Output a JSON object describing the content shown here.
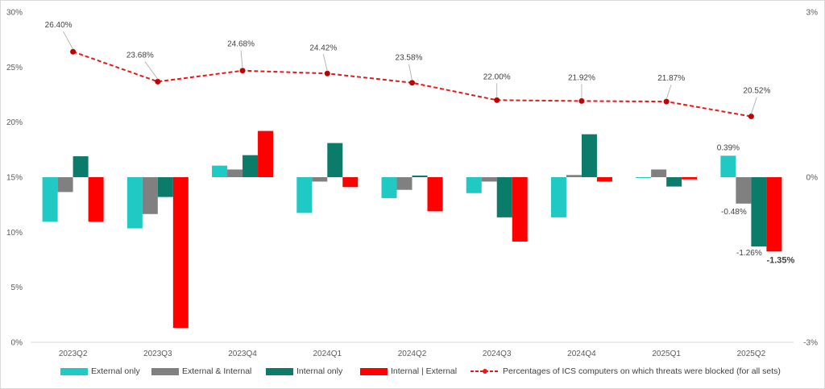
{
  "chart_data": {
    "type": "bar",
    "categories": [
      "2023Q2",
      "2023Q3",
      "2023Q4",
      "2024Q1",
      "2024Q2",
      "2024Q3",
      "2024Q4",
      "2025Q1",
      "2025Q2"
    ],
    "left_axis": {
      "ylim": [
        0,
        30
      ],
      "ticks": [
        0,
        5,
        10,
        15,
        20,
        25,
        30
      ],
      "tick_labels": [
        "0%",
        "5%",
        "10%",
        "15%",
        "20%",
        "25%",
        "30%"
      ]
    },
    "right_axis": {
      "ylim": [
        -3,
        3
      ],
      "ticks": [
        -3,
        0,
        3
      ],
      "tick_labels": [
        "-3%",
        "0%",
        "3%"
      ]
    },
    "bar_series": [
      {
        "name": "External only",
        "color": "#20C9C3",
        "axis": "right",
        "values": [
          -0.81,
          -0.93,
          0.21,
          -0.65,
          -0.38,
          -0.29,
          -0.73,
          -0.01,
          0.39
        ],
        "shown_labels": [
          null,
          null,
          null,
          null,
          null,
          null,
          null,
          null,
          "0.39%"
        ]
      },
      {
        "name": "External & Internal",
        "color": "#808080",
        "axis": "right",
        "values": [
          -0.27,
          -0.67,
          0.14,
          -0.08,
          -0.23,
          -0.08,
          0.04,
          0.14,
          -0.48
        ],
        "shown_labels": [
          null,
          null,
          null,
          null,
          null,
          null,
          null,
          null,
          "-0.48%"
        ]
      },
      {
        "name": "Internal only",
        "color": "#0B7C6A",
        "axis": "right",
        "values": [
          0.38,
          -0.36,
          0.4,
          0.62,
          0.03,
          -0.73,
          0.78,
          -0.17,
          -1.26
        ],
        "shown_labels": [
          null,
          null,
          null,
          null,
          null,
          null,
          null,
          null,
          "-1.26%"
        ]
      },
      {
        "name": "Internal | External",
        "color": "#FF0000",
        "axis": "right",
        "values": [
          -0.81,
          -2.74,
          0.84,
          -0.18,
          -0.62,
          -1.17,
          -0.08,
          -0.04,
          -1.35
        ],
        "shown_labels": [
          null,
          null,
          null,
          null,
          null,
          null,
          null,
          null,
          "-1.35%"
        ]
      }
    ],
    "line_series": {
      "name": "Percentages of ICS computers on which threats were blocked (for all sets)",
      "color": "#E31A1C",
      "axis": "left",
      "values": [
        26.4,
        23.68,
        24.68,
        24.42,
        23.58,
        22.0,
        21.92,
        21.87,
        20.52
      ],
      "labels": [
        "26.40%",
        "23.68%",
        "24.68%",
        "24.42%",
        "23.58%",
        "22.00%",
        "21.92%",
        "21.87%",
        "20.52%"
      ]
    },
    "grid": false,
    "legend_position": "bottom"
  }
}
